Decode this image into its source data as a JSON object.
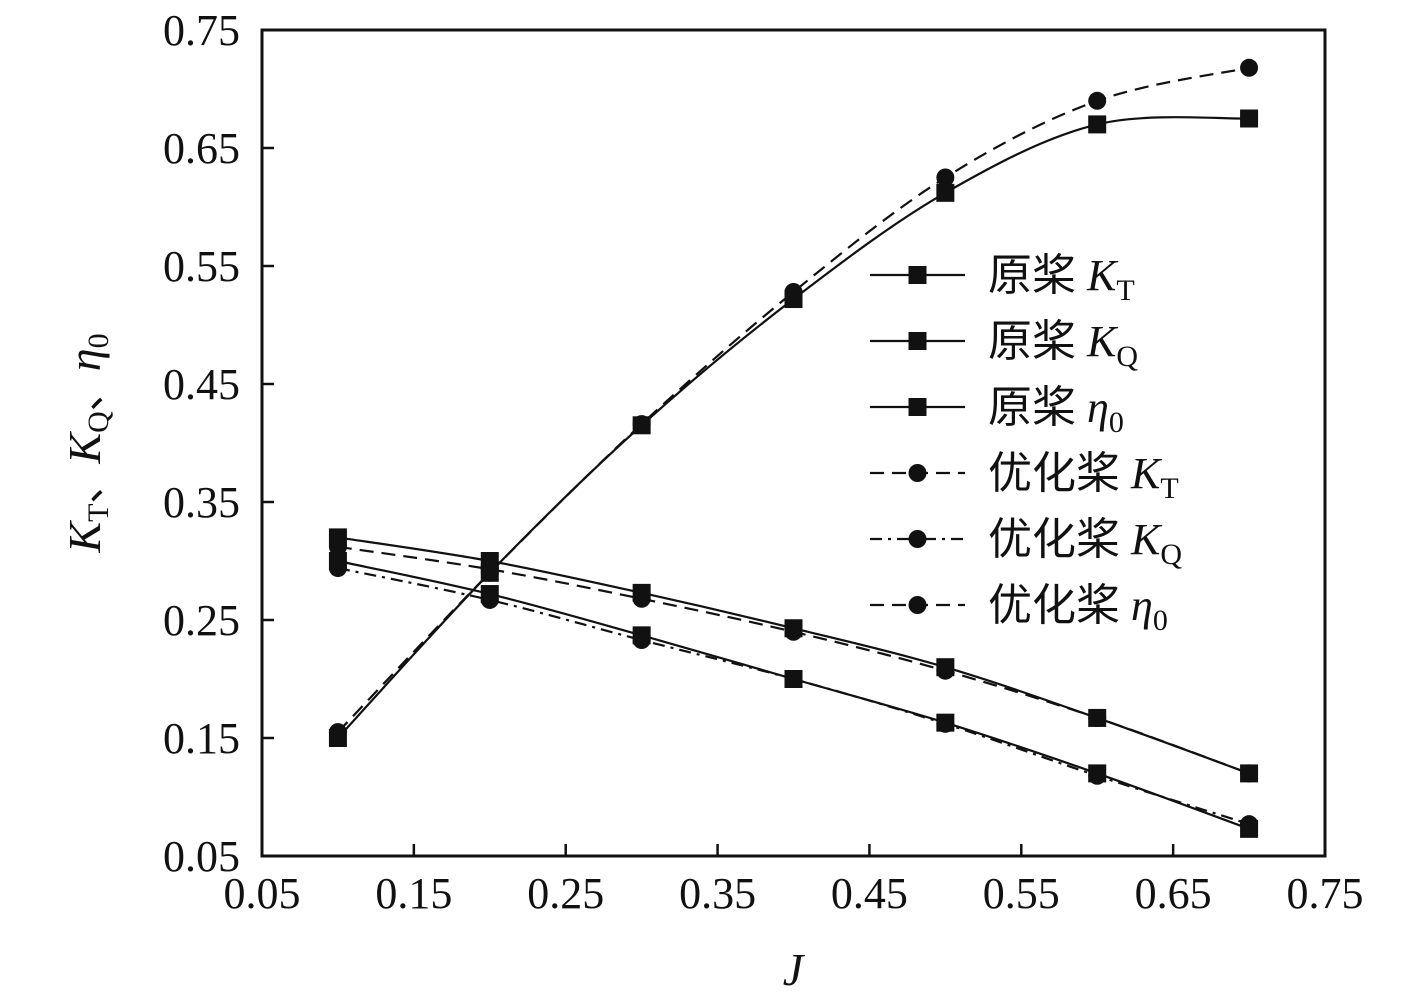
{
  "chart_data": {
    "type": "line",
    "xlabel": "J",
    "ylabel": {
      "parts": [
        {
          "text": "K",
          "italic": true
        },
        {
          "text": "T",
          "sub": true
        },
        {
          "text": "、"
        },
        {
          "text": "K",
          "italic": true
        },
        {
          "text": "Q",
          "sub": true
        },
        {
          "text": "、"
        },
        {
          "text": "η",
          "italic": true
        },
        {
          "text": "0",
          "sub": true
        }
      ]
    },
    "xlim": [
      0.05,
      0.75
    ],
    "ylim": [
      0.05,
      0.75
    ],
    "xticks": [
      "0.05",
      "0.15",
      "0.25",
      "0.35",
      "0.45",
      "0.55",
      "0.65",
      "0.75"
    ],
    "yticks": [
      "0.05",
      "0.15",
      "0.25",
      "0.35",
      "0.45",
      "0.55",
      "0.65",
      "0.75"
    ],
    "x": [
      0.1,
      0.2,
      0.3,
      0.4,
      0.5,
      0.6,
      0.7
    ],
    "legend_position": "right",
    "series": [
      {
        "prefix": "原桨",
        "symbol": "K",
        "sub": "T",
        "marker": "square",
        "dash": "solid",
        "values": [
          0.32,
          0.3,
          0.273,
          0.243,
          0.21,
          0.167,
          0.12
        ]
      },
      {
        "prefix": "原桨",
        "symbol": "K",
        "sub": "Q",
        "marker": "square",
        "dash": "solid",
        "values": [
          0.3,
          0.272,
          0.237,
          0.2,
          0.163,
          0.12,
          0.073
        ]
      },
      {
        "prefix": "原桨",
        "symbol": "η",
        "sub": "0",
        "marker": "square",
        "dash": "solid",
        "values": [
          0.15,
          0.29,
          0.415,
          0.522,
          0.612,
          0.67,
          0.675
        ]
      },
      {
        "prefix": "优化桨",
        "symbol": "K",
        "sub": "T",
        "marker": "circle",
        "dash": "dashed",
        "values": [
          0.312,
          0.293,
          0.268,
          0.24,
          0.207,
          0.167,
          0.12
        ]
      },
      {
        "prefix": "优化桨",
        "symbol": "K",
        "sub": "Q",
        "marker": "circle",
        "dash": "dashdot",
        "values": [
          0.294,
          0.267,
          0.233,
          0.2,
          0.162,
          0.118,
          0.077
        ]
      },
      {
        "prefix": "优化桨",
        "symbol": "η",
        "sub": "0",
        "marker": "circle",
        "dash": "dashed",
        "values": [
          0.155,
          0.29,
          0.416,
          0.528,
          0.625,
          0.69,
          0.718
        ]
      }
    ]
  }
}
